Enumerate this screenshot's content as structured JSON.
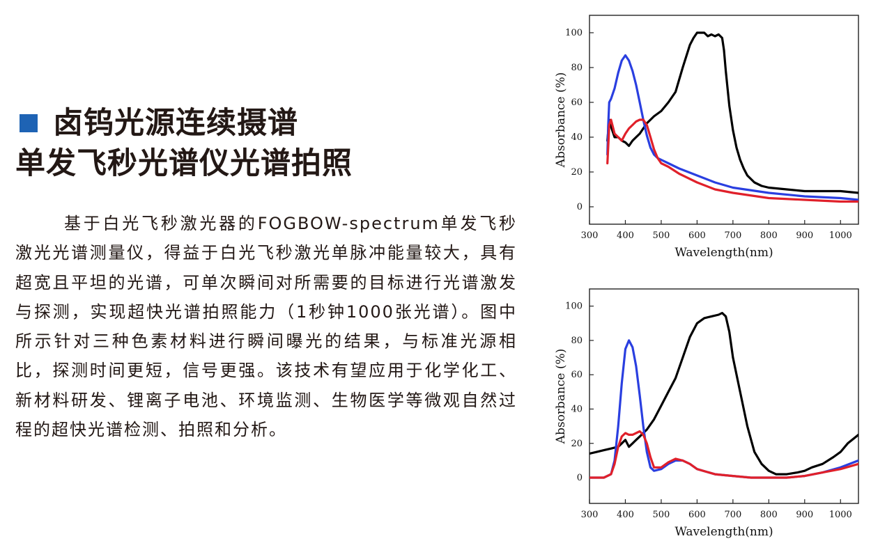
{
  "title": {
    "line1": "卤钨光源连续摄谱",
    "line2": "单发飞秒光谱仪光谱拍照"
  },
  "body_paragraph": "基于白光飞秒激光器的FOGBOW-spectrum单发飞秒激光光谱测量仪，得益于白光飞秒激光单脉冲能量较大，具有超宽且平坦的光谱，可单次瞬间对所需要的目标进行光谱激发与探测，实现超快光谱拍照能力（1秒钟1000张光谱）。图中所示针对三种色素材料进行瞬间曝光的结果，与标准光源相比，探测时间更短，信号更强。该技术有望应用于化学化工、新材料研发、锂离子电池、环境监测、生物医学等微观自然过程的超快光谱检测、拍照和分析。",
  "colors": {
    "accent": "#1e63b4",
    "text": "#231815",
    "black_series": "#000000",
    "blue_series": "#2a3fe0",
    "red_series": "#e0202a"
  },
  "chart_data": [
    {
      "type": "line",
      "xlabel": "Wavelength(nm)",
      "ylabel": "Absorbance (%)",
      "xlim": [
        300,
        1050
      ],
      "ylim": [
        -10,
        110
      ],
      "xticks": [
        300,
        400,
        500,
        600,
        700,
        800,
        900,
        1000
      ],
      "yticks": [
        0,
        20,
        40,
        60,
        80,
        100
      ],
      "series": [
        {
          "color": "#000000",
          "x": [
            350,
            355,
            360,
            370,
            380,
            390,
            400,
            410,
            420,
            430,
            440,
            450,
            460,
            470,
            480,
            500,
            520,
            540,
            560,
            580,
            590,
            600,
            610,
            620,
            630,
            640,
            650,
            660,
            670,
            675,
            680,
            690,
            700,
            710,
            720,
            730,
            740,
            750,
            760,
            780,
            800,
            850,
            900,
            950,
            1000,
            1050
          ],
          "y": [
            38,
            50,
            46,
            40,
            40,
            38,
            37,
            35,
            38,
            40,
            42,
            45,
            48,
            50,
            52,
            55,
            60,
            66,
            80,
            93,
            97,
            100,
            100,
            100,
            98,
            99,
            98,
            99,
            97,
            90,
            78,
            58,
            44,
            34,
            27,
            22,
            18,
            16,
            14,
            12,
            11,
            10,
            9,
            9,
            9,
            8
          ]
        },
        {
          "color": "#2a3fe0",
          "x": [
            350,
            352,
            355,
            360,
            370,
            380,
            390,
            400,
            410,
            420,
            430,
            440,
            450,
            460,
            470,
            480,
            490,
            500,
            520,
            550,
            600,
            650,
            700,
            800,
            900,
            1000,
            1050
          ],
          "y": [
            30,
            46,
            60,
            62,
            68,
            77,
            84,
            87,
            84,
            78,
            70,
            60,
            50,
            41,
            34,
            30,
            28,
            27,
            25,
            22,
            18,
            14,
            11,
            8,
            6,
            5,
            4
          ]
        },
        {
          "color": "#e0202a",
          "x": [
            350,
            353,
            355,
            360,
            365,
            370,
            380,
            390,
            400,
            410,
            420,
            430,
            440,
            450,
            460,
            470,
            480,
            490,
            500,
            520,
            550,
            600,
            650,
            700,
            800,
            900,
            1000,
            1050
          ],
          "y": [
            25,
            38,
            47,
            50,
            46,
            42,
            40,
            38,
            42,
            45,
            47,
            49,
            50,
            50,
            47,
            40,
            33,
            28,
            25,
            23,
            19,
            14,
            10,
            8,
            5,
            4,
            3,
            3
          ]
        }
      ]
    },
    {
      "type": "line",
      "xlabel": "Wavelength(nm)",
      "ylabel": "Absorbance (%)",
      "xlim": [
        300,
        1050
      ],
      "ylim": [
        -15,
        110
      ],
      "xticks": [
        300,
        400,
        500,
        600,
        700,
        800,
        900,
        1000
      ],
      "yticks": [
        0,
        20,
        40,
        60,
        80,
        100
      ],
      "series": [
        {
          "color": "#000000",
          "x": [
            300,
            320,
            340,
            360,
            380,
            390,
            400,
            410,
            420,
            430,
            440,
            450,
            460,
            480,
            500,
            520,
            540,
            560,
            580,
            600,
            620,
            640,
            660,
            670,
            680,
            690,
            700,
            720,
            740,
            760,
            780,
            800,
            820,
            850,
            880,
            900,
            920,
            950,
            980,
            1000,
            1020,
            1050
          ],
          "y": [
            14,
            15,
            16,
            17,
            18,
            20,
            22,
            18,
            20,
            22,
            24,
            26,
            28,
            34,
            42,
            50,
            58,
            70,
            82,
            90,
            93,
            94,
            95,
            96,
            94,
            85,
            70,
            50,
            30,
            15,
            8,
            4,
            2,
            2,
            3,
            4,
            6,
            8,
            12,
            15,
            20,
            25
          ]
        },
        {
          "color": "#2a3fe0",
          "x": [
            300,
            340,
            360,
            370,
            380,
            390,
            400,
            410,
            420,
            430,
            440,
            450,
            460,
            470,
            480,
            500,
            520,
            540,
            560,
            580,
            600,
            650,
            700,
            750,
            800,
            850,
            900,
            950,
            1000,
            1050
          ],
          "y": [
            0,
            0,
            2,
            10,
            30,
            55,
            75,
            80,
            76,
            65,
            48,
            30,
            15,
            6,
            4,
            5,
            8,
            10,
            10,
            8,
            5,
            2,
            1,
            0,
            0,
            0,
            1,
            3,
            6,
            10
          ]
        },
        {
          "color": "#e0202a",
          "x": [
            300,
            340,
            360,
            370,
            380,
            390,
            400,
            410,
            420,
            430,
            440,
            450,
            460,
            470,
            480,
            500,
            520,
            540,
            560,
            580,
            600,
            650,
            700,
            750,
            800,
            850,
            900,
            950,
            1000,
            1050
          ],
          "y": [
            0,
            0,
            2,
            8,
            18,
            24,
            26,
            25,
            25,
            26,
            27,
            25,
            20,
            12,
            6,
            6,
            9,
            11,
            10,
            8,
            5,
            2,
            1,
            0,
            0,
            0,
            1,
            3,
            5,
            8
          ]
        }
      ]
    }
  ]
}
